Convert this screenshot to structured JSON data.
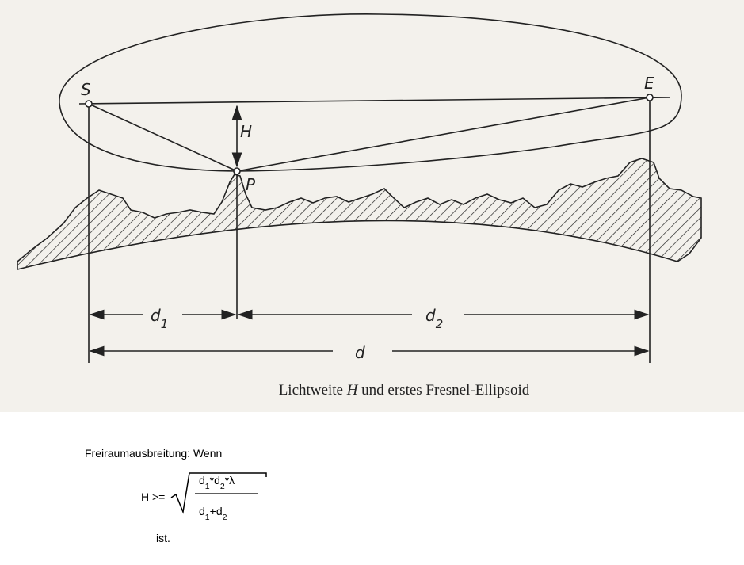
{
  "figure": {
    "labels": {
      "source": "S",
      "receiver": "E",
      "point": "P",
      "clearance": "H"
    },
    "dimensions": [
      [
        {
          "text": "d"
        },
        {
          "sub": "1"
        }
      ],
      [
        {
          "text": "d"
        },
        {
          "sub": "2"
        }
      ],
      [
        {
          "text": "d"
        }
      ]
    ],
    "caption": [
      {
        "text": "Lichtweite "
      },
      {
        "italic": "H"
      },
      {
        "text": " und erstes Fresnel-Ellipsoid"
      }
    ]
  },
  "formula": {
    "intro": "Freiraumausbreitung: Wenn",
    "lhs": "H >=",
    "numerator": [
      {
        "text": "d"
      },
      {
        "sub": "1"
      },
      {
        "text": "*d"
      },
      {
        "sub": "2"
      },
      {
        "text": "*λ"
      }
    ],
    "denominator": [
      {
        "text": "d"
      },
      {
        "sub": "1"
      },
      {
        "text": "+d"
      },
      {
        "sub": "2"
      }
    ],
    "outro": "ist."
  }
}
